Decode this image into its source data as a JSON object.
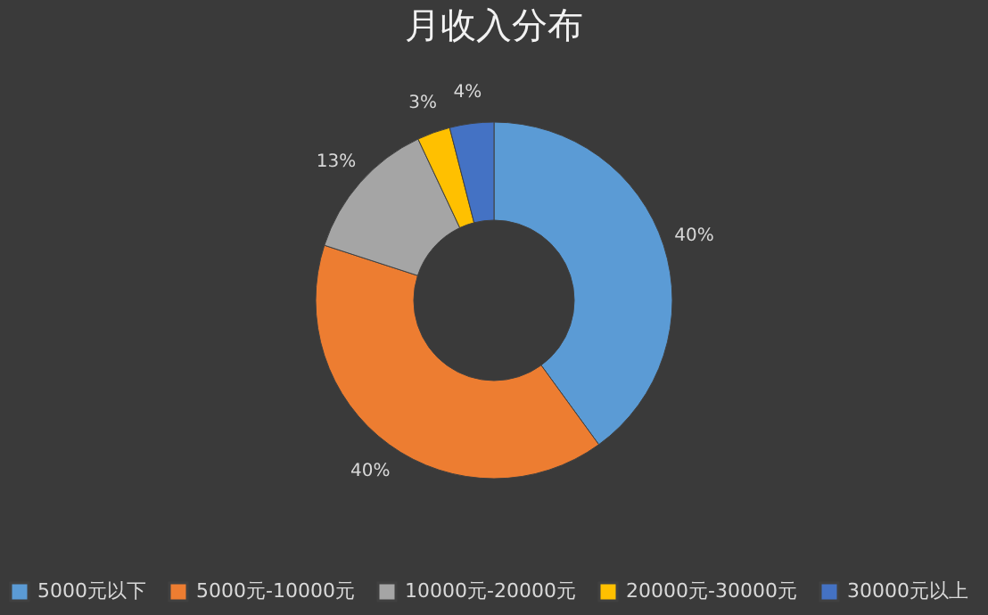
{
  "chart_data": {
    "type": "donut",
    "title": "月收入分布",
    "categories": [
      "5000元以下",
      "5000元-10000元",
      "10000元-20000元",
      "20000元-30000元",
      "30000元以上"
    ],
    "values": [
      40,
      40,
      13,
      3,
      4
    ],
    "colors": [
      "#5b9bd5",
      "#ed7d31",
      "#a5a5a5",
      "#ffc000",
      "#4472c4"
    ],
    "value_labels": [
      "40%",
      "40%",
      "13%",
      "3%",
      "4%"
    ],
    "legend": "bottom"
  }
}
